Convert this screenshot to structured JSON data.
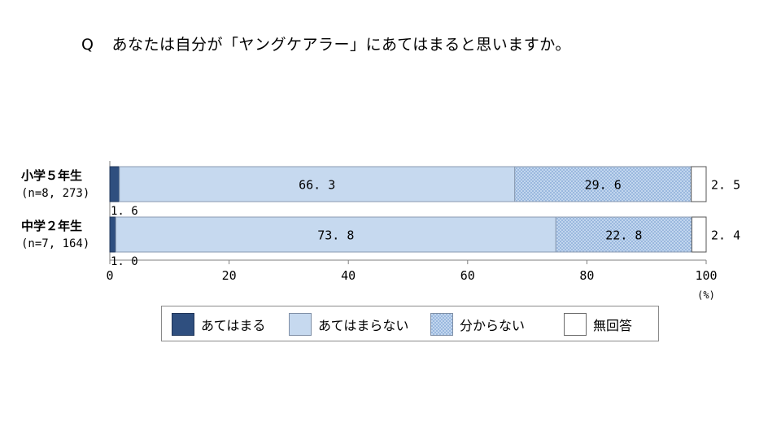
{
  "question": {
    "label": "Q",
    "text": "あなたは自分が「ヤングケアラー」にあてはまると思いますか。"
  },
  "rows": [
    {
      "name": "小学５年生",
      "n": "(n=8, 273)"
    },
    {
      "name": "中学２年生",
      "n": "(n=7, 164)"
    }
  ],
  "colors": {
    "atehamaru": "#2f4f7f",
    "atehamaranai": "#c6d9ef",
    "wakaranai": "#b3cbe8",
    "mukaitou": "#ffffff"
  },
  "chart_data": {
    "type": "bar",
    "orientation": "horizontal",
    "stacked": true,
    "categories": [
      "小学５年生",
      "中学２年生"
    ],
    "series": [
      {
        "name": "あてはまる",
        "values": [
          1.6,
          1.0
        ],
        "labels": [
          "1. 6",
          "1. 0"
        ]
      },
      {
        "name": "あてはまらない",
        "values": [
          66.3,
          73.8
        ],
        "labels": [
          "66. 3",
          "73. 8"
        ]
      },
      {
        "name": "分からない",
        "values": [
          29.6,
          22.8
        ],
        "labels": [
          "29. 6",
          "22. 8"
        ]
      },
      {
        "name": "無回答",
        "values": [
          2.5,
          2.4
        ],
        "labels": [
          "2. 5",
          "2. 4"
        ]
      }
    ],
    "xlim": [
      0,
      100
    ],
    "xticks": [
      "0",
      "20",
      "40",
      "60",
      "80",
      "100"
    ],
    "xunit": "(%)",
    "legend_position": "bottom"
  }
}
